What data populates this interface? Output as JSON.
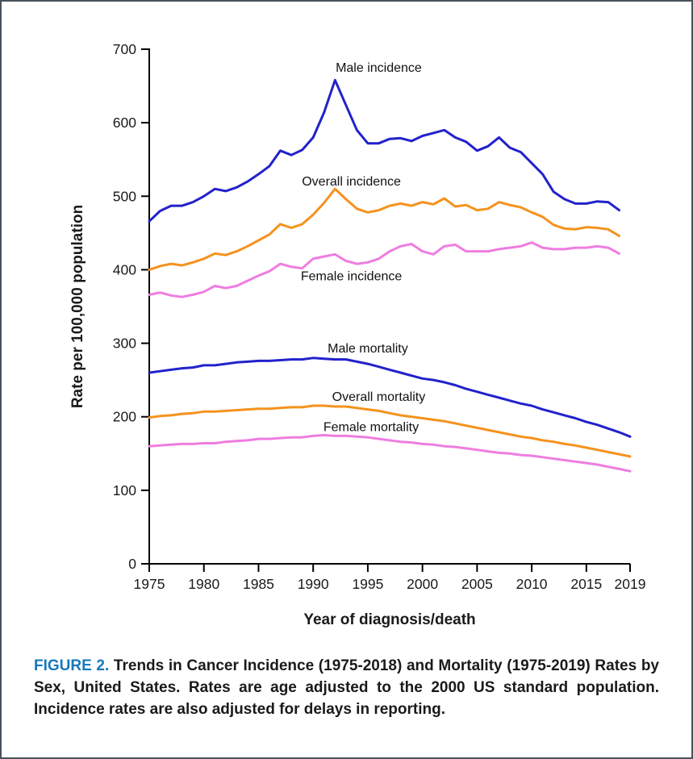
{
  "figure": {
    "caption_label": "FIGURE 2.",
    "caption_text": " Trends in Cancer Incidence (1975-2018) and Mortality (1975-2019) Rates by Sex, United States. Rates are age adjusted to the 2000 US standard population. Incidence rates are also adjusted for delays in reporting."
  },
  "chart_data": {
    "type": "line",
    "title": "",
    "xlabel": "Year of diagnosis/death",
    "ylabel": "Rate per 100,000 population",
    "xlim": [
      1975,
      2019
    ],
    "ylim": [
      0,
      700
    ],
    "xticks": [
      1975,
      1980,
      1985,
      1990,
      1995,
      2000,
      2005,
      2010,
      2015,
      2019
    ],
    "yticks": [
      0,
      100,
      200,
      300,
      400,
      500,
      600,
      700
    ],
    "grid": false,
    "legend": "inline-annotations",
    "colors": {
      "male": "#2222cc",
      "overall": "#f5921e",
      "female": "#ef7de0",
      "axis": "#000000",
      "text": "#1a1a1a"
    },
    "series": [
      {
        "name": "Male incidence",
        "color": "#2222cc",
        "start_year": 1975,
        "values": [
          466,
          480,
          487,
          487,
          492,
          500,
          510,
          507,
          512,
          520,
          530,
          541,
          562,
          556,
          563,
          580,
          614,
          658,
          624,
          590,
          572,
          572,
          578,
          579,
          575,
          582,
          586,
          590,
          580,
          574,
          562,
          568,
          580,
          566,
          560,
          545,
          530,
          506,
          496,
          490,
          490,
          493,
          492,
          481
        ]
      },
      {
        "name": "Overall incidence",
        "color": "#f5921e",
        "start_year": 1975,
        "values": [
          400,
          405,
          408,
          406,
          410,
          415,
          422,
          420,
          425,
          432,
          440,
          448,
          462,
          457,
          462,
          475,
          491,
          510,
          496,
          483,
          478,
          481,
          487,
          490,
          487,
          492,
          489,
          497,
          486,
          488,
          481,
          483,
          492,
          488,
          485,
          478,
          472,
          461,
          456,
          455,
          458,
          457,
          455,
          446
        ]
      },
      {
        "name": "Female incidence",
        "color": "#ef7de0",
        "start_year": 1975,
        "values": [
          366,
          369,
          365,
          363,
          366,
          370,
          378,
          375,
          378,
          385,
          392,
          398,
          408,
          404,
          402,
          415,
          418,
          421,
          412,
          408,
          410,
          415,
          425,
          432,
          435,
          425,
          421,
          432,
          434,
          425,
          425,
          425,
          428,
          430,
          432,
          437,
          430,
          428,
          428,
          430,
          430,
          432,
          430,
          422
        ]
      },
      {
        "name": "Male mortality",
        "color": "#2222cc",
        "start_year": 1975,
        "values": [
          260,
          262,
          264,
          266,
          267,
          270,
          270,
          272,
          274,
          275,
          276,
          276,
          277,
          278,
          278,
          280,
          279,
          278,
          278,
          275,
          272,
          268,
          264,
          260,
          256,
          252,
          250,
          247,
          243,
          238,
          234,
          230,
          226,
          222,
          218,
          215,
          210,
          206,
          202,
          198,
          193,
          189,
          184,
          179,
          173
        ]
      },
      {
        "name": "Overall mortality",
        "color": "#f5921e",
        "start_year": 1975,
        "values": [
          199,
          201,
          202,
          204,
          205,
          207,
          207,
          208,
          209,
          210,
          211,
          211,
          212,
          213,
          213,
          215,
          215,
          214,
          214,
          212,
          210,
          208,
          205,
          202,
          200,
          198,
          196,
          194,
          191,
          188,
          185,
          182,
          179,
          176,
          173,
          171,
          168,
          166,
          163,
          161,
          158,
          155,
          152,
          149,
          146
        ]
      },
      {
        "name": "Female mortality",
        "color": "#ef7de0",
        "start_year": 1975,
        "values": [
          160,
          161,
          162,
          163,
          163,
          164,
          164,
          166,
          167,
          168,
          170,
          170,
          171,
          172,
          172,
          174,
          175,
          174,
          174,
          173,
          172,
          170,
          168,
          166,
          165,
          163,
          162,
          160,
          159,
          157,
          155,
          153,
          151,
          150,
          148,
          147,
          145,
          143,
          141,
          139,
          137,
          135,
          132,
          129,
          126
        ]
      }
    ],
    "annotations": [
      {
        "text": "Male incidence",
        "year": 1996.0,
        "value": 675
      },
      {
        "text": "Overall incidence",
        "year": 1993.5,
        "value": 520
      },
      {
        "text": "Female incidence",
        "year": 1993.5,
        "value": 391
      },
      {
        "text": "Male mortality",
        "year": 1995.0,
        "value": 293
      },
      {
        "text": "Overall mortality",
        "year": 1996.0,
        "value": 227
      },
      {
        "text": "Female mortality",
        "year": 1995.3,
        "value": 186
      }
    ]
  }
}
